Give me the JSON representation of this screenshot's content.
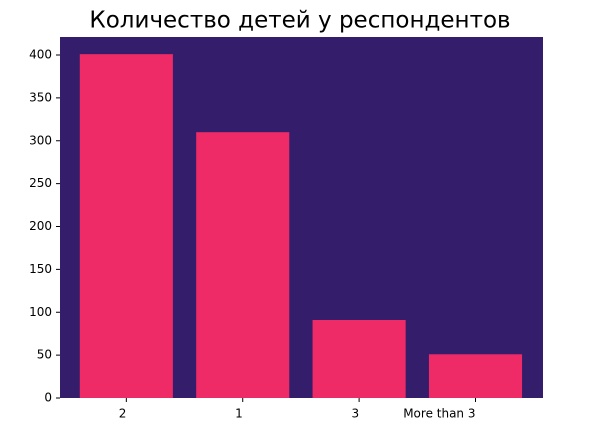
{
  "chart_data": {
    "type": "bar",
    "title": "Количество детей у респондентов",
    "categories": [
      "2",
      "1",
      "3",
      "More than 3"
    ],
    "values": [
      401,
      310,
      91,
      51
    ],
    "color": "#ee2a67",
    "background": "#341d6b",
    "ylim": [
      0,
      421
    ],
    "yticks": [
      0,
      50,
      100,
      150,
      200,
      250,
      300,
      350,
      400
    ]
  }
}
